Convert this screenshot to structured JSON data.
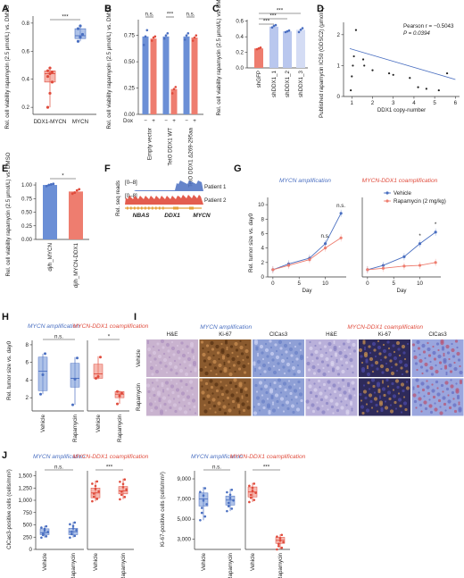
{
  "colors": {
    "blue": "#6b8fd6",
    "red": "#ee7d6f",
    "blue_dark": "#4a6fc1",
    "red_dark": "#e04b3c",
    "lightblue": "#b9c7ee"
  },
  "panel_labels": [
    "A",
    "B",
    "C",
    "D",
    "E",
    "F",
    "G",
    "H",
    "I",
    "J"
  ],
  "chart_data": [
    {
      "panel": "A",
      "type": "box",
      "ylabel": "Rel. cell viability rapamycin (2.5 μmol/L) vs. DMSO",
      "yticks": [
        "0.2",
        "0.4",
        "0.6",
        "0.8"
      ],
      "ylim": [
        0.15,
        0.85
      ],
      "categories": [
        "DDX1-MYCN",
        "MYCN"
      ],
      "boxes": [
        {
          "q1": 0.38,
          "median": 0.44,
          "q3": 0.46,
          "min": 0.2,
          "max": 0.48,
          "points": [
            0.2,
            0.3,
            0.38,
            0.42,
            0.44,
            0.45,
            0.46,
            0.48
          ]
        },
        {
          "q1": 0.69,
          "median": 0.71,
          "q3": 0.76,
          "min": 0.67,
          "max": 0.78,
          "points": [
            0.67,
            0.7,
            0.72,
            0.76,
            0.78
          ]
        }
      ],
      "significance": "***"
    },
    {
      "panel": "B",
      "type": "bar",
      "ylabel": "Rel. cell viability rapamycin (2.5 μmol/L) vs. DMSO",
      "yticks": [
        "0.00",
        "0.25",
        "0.50",
        "0.75"
      ],
      "ylim": [
        0,
        0.9
      ],
      "groups": [
        "Empty vector",
        "TetO DDX1 WT",
        "TetO DDX1 Δ269-295aa"
      ],
      "dox_label": "Dox",
      "dox_states": [
        "−",
        "+",
        "−",
        "+",
        "−",
        "+"
      ],
      "values": [
        0.74,
        0.72,
        0.74,
        0.24,
        0.74,
        0.73
      ],
      "points": [
        [
          0.66,
          0.74,
          0.8
        ],
        [
          0.7,
          0.73,
          0.74
        ],
        [
          0.72,
          0.75,
          0.77
        ],
        [
          0.2,
          0.24,
          0.26
        ],
        [
          0.71,
          0.75,
          0.77
        ],
        [
          0.7,
          0.73,
          0.75
        ]
      ],
      "significance": [
        "n.s.",
        "***",
        "n.s."
      ]
    },
    {
      "panel": "C",
      "type": "bar",
      "ylabel": "Rel. cell viability rapamycin (2.5 μmol/L) vs. DMSO",
      "yticks": [
        "0.0",
        "0.2",
        "0.4",
        "0.6"
      ],
      "ylim": [
        0,
        0.62
      ],
      "categories": [
        "shGFP",
        "shDDX1_1",
        "shDDX1_2",
        "shDDX1_3"
      ],
      "values": [
        0.25,
        0.53,
        0.47,
        0.49
      ],
      "points": [
        [
          0.24,
          0.25,
          0.26
        ],
        [
          0.52,
          0.54,
          0.55
        ],
        [
          0.46,
          0.47,
          0.48
        ],
        [
          0.46,
          0.49,
          0.51
        ]
      ],
      "significance": [
        "***",
        "***",
        "***"
      ]
    },
    {
      "panel": "D",
      "type": "scatter",
      "ylabel": "Published rapamycin IC50 (GDSC2) (μmol/L)",
      "xlabel": "DDX1 copy-number",
      "xticks": [
        "1",
        "2",
        "3",
        "4",
        "5",
        "6"
      ],
      "yticks": [
        "0",
        "1",
        "2"
      ],
      "xlim": [
        0.6,
        6.2
      ],
      "ylim": [
        0,
        2.4
      ],
      "annotation": [
        "Pearson r = −0.5043",
        "P = 0.0394"
      ],
      "points": [
        [
          0.95,
          0.2
        ],
        [
          1.0,
          0.65
        ],
        [
          1.05,
          1.0
        ],
        [
          1.1,
          1.3
        ],
        [
          1.2,
          2.15
        ],
        [
          1.55,
          1.2
        ],
        [
          1.6,
          1.0
        ],
        [
          2.0,
          0.85
        ],
        [
          2.8,
          0.75
        ],
        [
          3.0,
          0.7
        ],
        [
          3.8,
          0.6
        ],
        [
          4.2,
          0.3
        ],
        [
          4.6,
          0.25
        ],
        [
          5.2,
          0.2
        ],
        [
          5.6,
          0.75
        ]
      ],
      "fit": [
        [
          0.9,
          1.55
        ],
        [
          6.0,
          0.55
        ]
      ]
    },
    {
      "panel": "E",
      "type": "bar",
      "ylabel": "Rel. cell viability rapamycin (2.5 μmol/L) vs. DMSO",
      "yticks": [
        "0.00",
        "0.25",
        "0.50",
        "0.75",
        "1.00"
      ],
      "ylim": [
        0,
        1.05
      ],
      "categories": [
        "dj/h_MYCN",
        "dj/h_MYCN-DDX1"
      ],
      "values": [
        1.0,
        0.88
      ],
      "points": [
        [
          0.98,
          1.0,
          1.01,
          1.02
        ],
        [
          0.84,
          0.86,
          0.9,
          0.92
        ]
      ],
      "significance": "*"
    },
    {
      "panel": "F",
      "type": "coverage",
      "ylabel": "Rel. seq reads",
      "range_label": "[0–8]",
      "tracks": [
        "Patient 1",
        "Patient 2"
      ],
      "genes": [
        "NBAS",
        "DDX1",
        "MYCN"
      ]
    },
    {
      "panel": "G",
      "type": "line",
      "ylabel": "Rel. tumor size vs. day0",
      "xlabel": "Day",
      "titles": [
        "MYCN amplification",
        "MYCN-DDX1 coamplification"
      ],
      "legend": [
        "Vehicle",
        "Rapamycin (2 mg/kg)"
      ],
      "xticks": [
        "0",
        "5",
        "10"
      ],
      "yticks": [
        "0",
        "2",
        "4",
        "6",
        "8",
        "10"
      ],
      "xlim": [
        -1,
        14
      ],
      "ylim": [
        0,
        11
      ],
      "left": {
        "x": [
          0,
          3,
          7,
          10,
          13
        ],
        "vehicle": [
          1.0,
          1.8,
          2.6,
          4.6,
          8.8
        ],
        "rapamycin": [
          1.0,
          1.6,
          2.4,
          4.0,
          5.4
        ]
      },
      "right": {
        "x": [
          0,
          3,
          7,
          10,
          13
        ],
        "vehicle": [
          1.0,
          1.6,
          2.8,
          4.6,
          6.2
        ],
        "rapamycin": [
          1.0,
          1.2,
          1.5,
          1.6,
          2.0
        ]
      },
      "significance_left": [
        "n.s.",
        "n.s."
      ],
      "significance_right": [
        "*",
        "*"
      ]
    },
    {
      "panel": "H",
      "type": "box",
      "ylabel": "Rel. tumor size vs. day0",
      "yticks": [
        "2",
        "4",
        "6",
        "8"
      ],
      "ylim": [
        0.5,
        8.5
      ],
      "titles": [
        "MYCN amplification",
        "MYCN-DDX1 coamplification"
      ],
      "categories": [
        "Vehicle",
        "Rapamycin",
        "Vehicle",
        "Rapamycin"
      ],
      "boxes": [
        {
          "q1": 2.8,
          "median": 5.0,
          "q3": 6.6,
          "min": 2.4,
          "max": 7.0,
          "points": [
            2.4,
            4.6,
            7.0
          ]
        },
        {
          "q1": 3.2,
          "median": 4.2,
          "q3": 5.9,
          "min": 1.2,
          "max": 6.6,
          "points": [
            1.2,
            4.1,
            6.5
          ]
        },
        {
          "q1": 4.2,
          "median": 4.7,
          "q3": 5.8,
          "min": 4.1,
          "max": 6.7,
          "points": [
            4.2,
            4.4,
            6.6
          ]
        },
        {
          "q1": 2.0,
          "median": 2.4,
          "q3": 2.7,
          "min": 1.3,
          "max": 2.8,
          "points": [
            1.3,
            2.2,
            2.5,
            2.7
          ]
        }
      ],
      "significance": [
        "n.s.",
        "*"
      ]
    },
    {
      "panel": "J1",
      "type": "box",
      "ylabel": "ClCas3-positive cells (cells/mm²)",
      "yticks": [
        "0",
        "250",
        "500",
        "750",
        "1,000",
        "1,250",
        "1,500"
      ],
      "ylim": [
        0,
        1600
      ],
      "titles": [
        "MYCN amplification",
        "MYCN-DDX1 coamplification"
      ],
      "categories": [
        "Vehicle",
        "Rapamycin",
        "Vehicle",
        "Rapamycin"
      ],
      "boxes": [
        {
          "q1": 300,
          "median": 340,
          "q3": 420,
          "min": 240,
          "max": 480
        },
        {
          "q1": 300,
          "median": 360,
          "q3": 430,
          "min": 240,
          "max": 560
        },
        {
          "q1": 1050,
          "median": 1150,
          "q3": 1250,
          "min": 980,
          "max": 1400
        },
        {
          "q1": 1130,
          "median": 1190,
          "q3": 1280,
          "min": 1020,
          "max": 1440
        }
      ],
      "significance": [
        "n.s.",
        "***"
      ]
    },
    {
      "panel": "J2",
      "type": "box",
      "ylabel": "Ki-67-positive cells (cells/mm²)",
      "yticks": [
        "3,000",
        "5,000",
        "7,000",
        "9,000"
      ],
      "ylim": [
        2000,
        9800
      ],
      "titles": [
        "MYCN amplification",
        "MYCN-DDX1 coamplification"
      ],
      "categories": [
        "Vehicle",
        "Rapamycin",
        "Vehicle",
        "Rapamycin"
      ],
      "boxes": [
        {
          "q1": 6300,
          "median": 7000,
          "q3": 7600,
          "min": 4900,
          "max": 8200
        },
        {
          "q1": 6400,
          "median": 6900,
          "q3": 7300,
          "min": 5800,
          "max": 8000
        },
        {
          "q1": 7200,
          "median": 7700,
          "q3": 8200,
          "min": 6700,
          "max": 8600
        },
        {
          "q1": 2600,
          "median": 2900,
          "q3": 3200,
          "min": 2000,
          "max": 3500
        }
      ],
      "significance": [
        "n.s.",
        "***"
      ]
    }
  ],
  "panel_I": {
    "titles": [
      "MYCN amplification",
      "MYCN-DDX1 coamplification"
    ],
    "columns": [
      "H&E",
      "Ki-67",
      "ClCas3",
      "H&E",
      "Ki-67",
      "ClCas3"
    ],
    "rows": [
      "Vehicle",
      "Rapamycin"
    ]
  }
}
